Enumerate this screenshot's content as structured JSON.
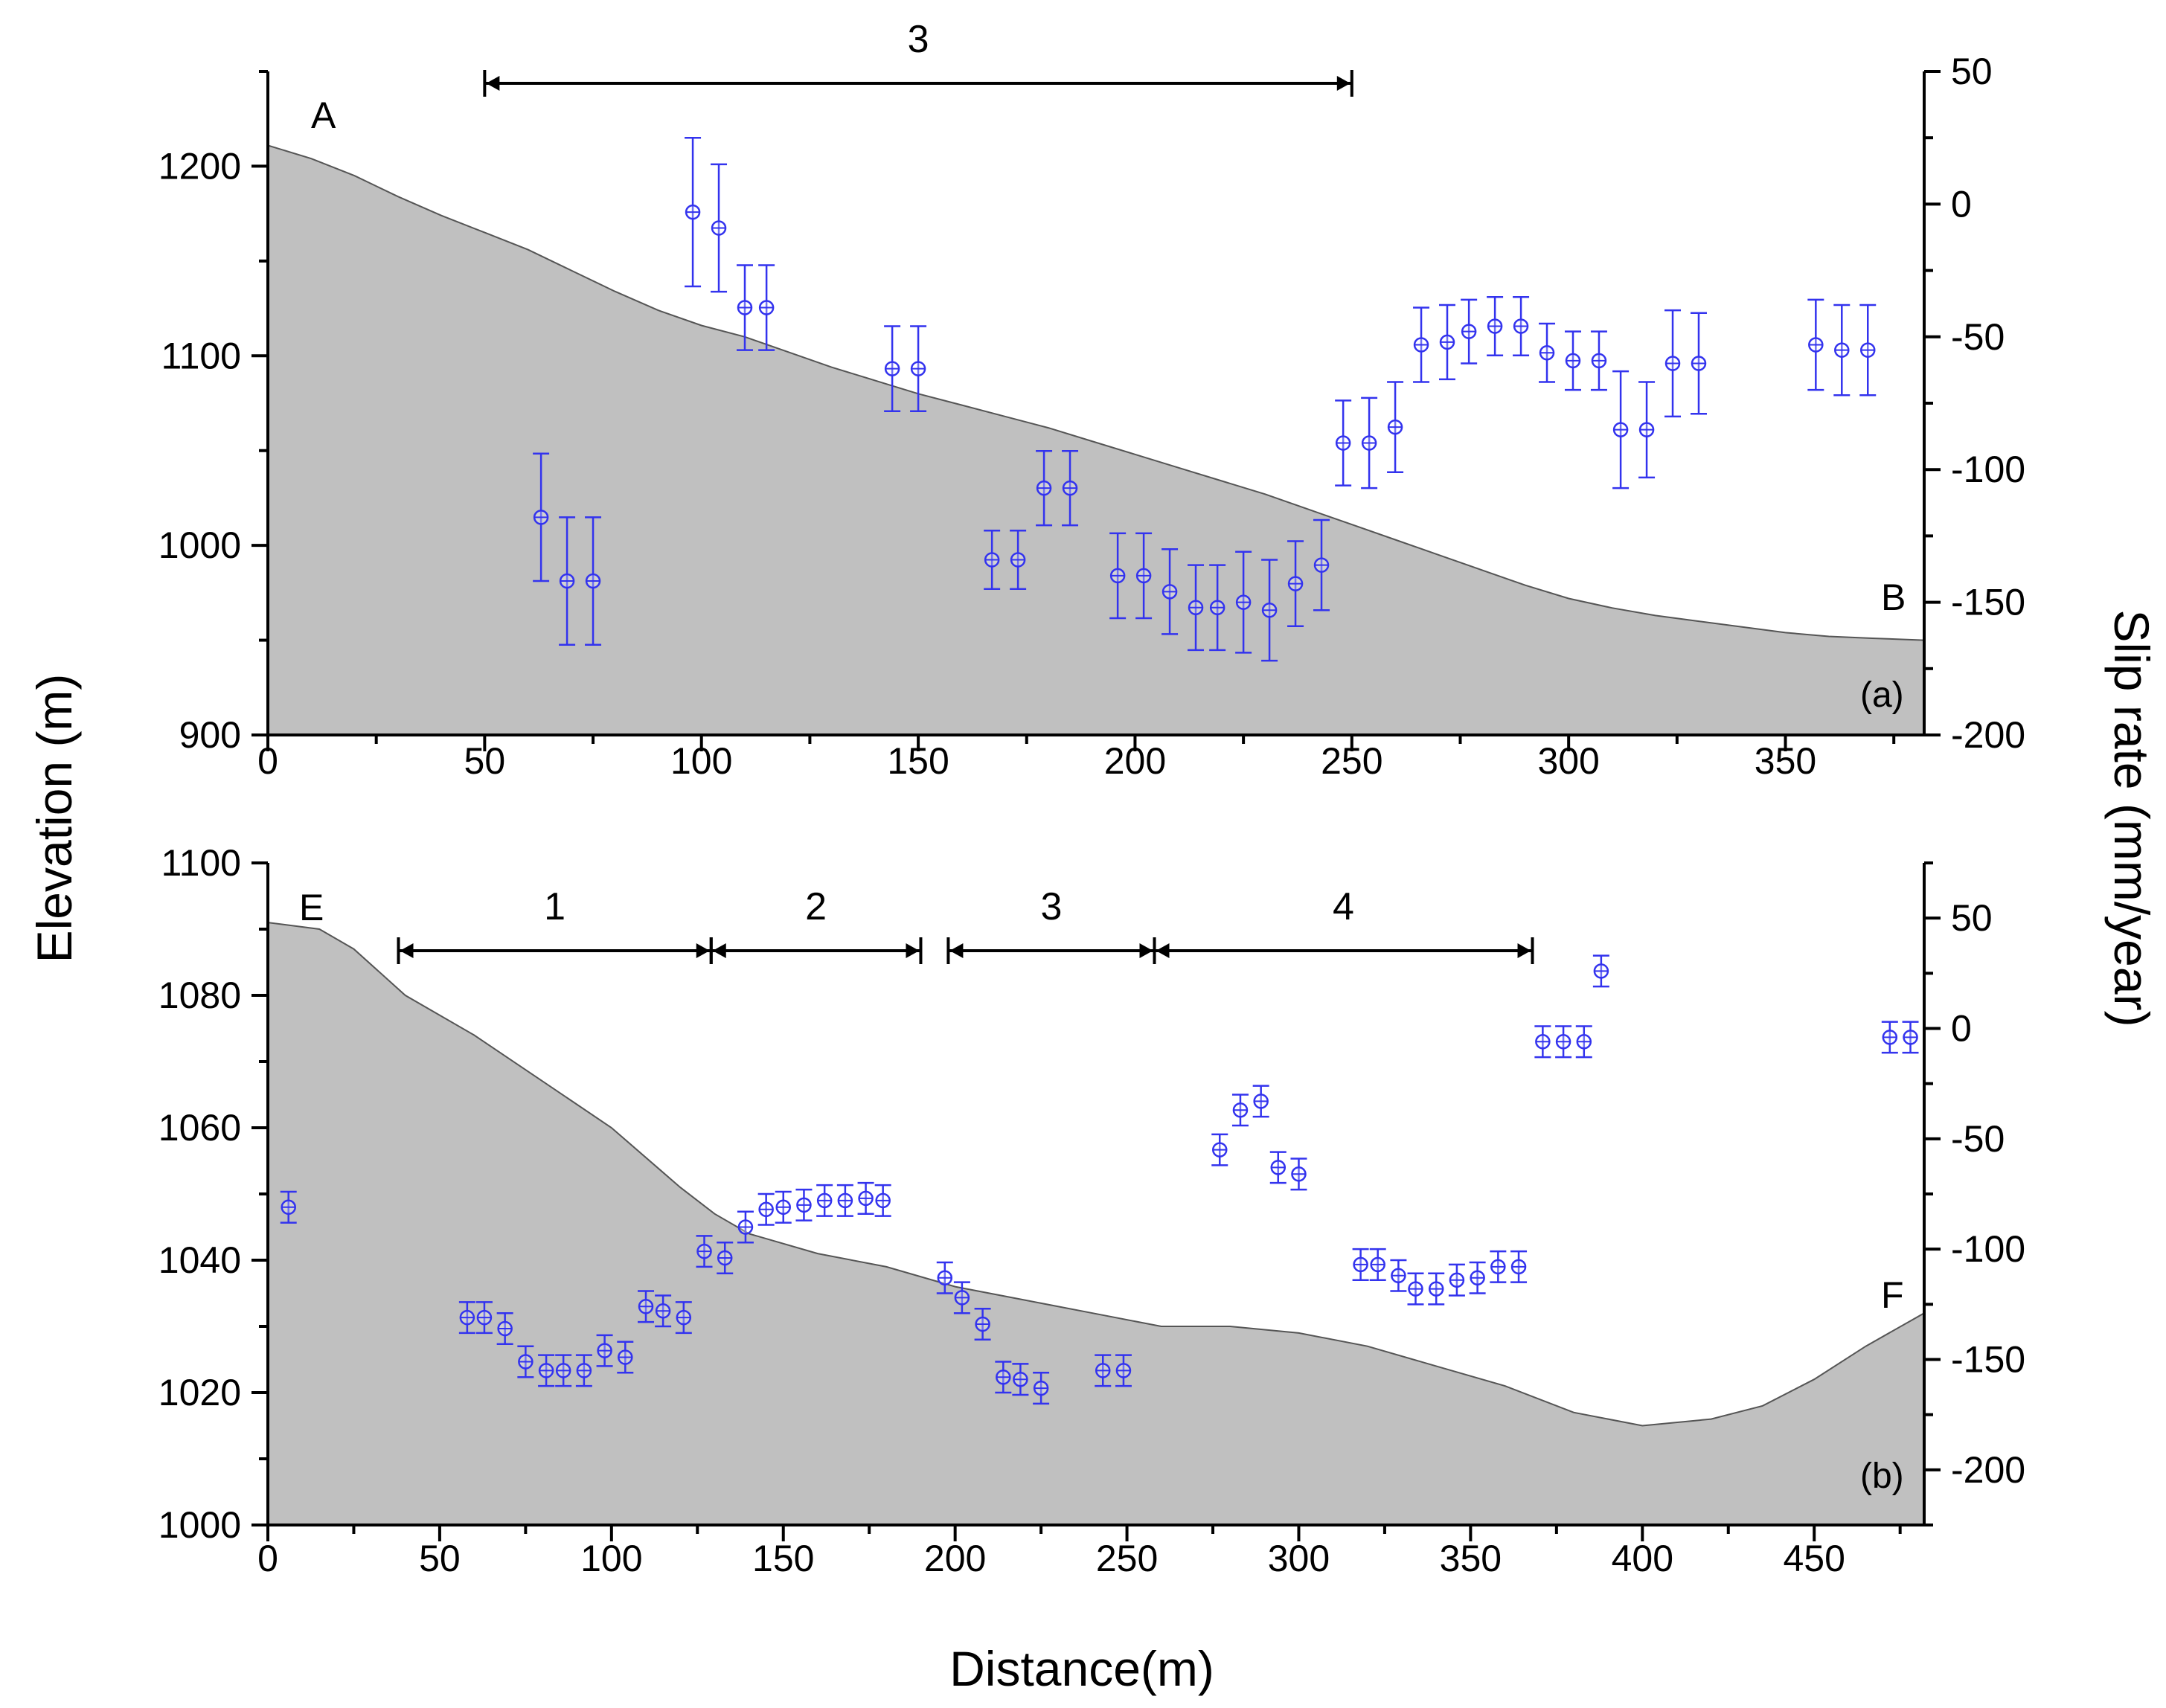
{
  "colors": {
    "terrain_fill": "#c0c0c0",
    "terrain_line": "#555555",
    "points": "#3333ee",
    "axes": "#000000"
  },
  "x_axis_title": "Distance(m)",
  "y_left_title": "Elevation (m)",
  "y_right_title": "Slip rate (mm/year)",
  "chart_data": [
    {
      "id": "a",
      "type": "scatter",
      "panel_label": "(a)",
      "start_label": "A",
      "end_label": "B",
      "xlim": [
        0,
        382
      ],
      "x_ticks": [
        0,
        50,
        100,
        150,
        200,
        250,
        300,
        350
      ],
      "ylim_left": [
        900,
        1250
      ],
      "y_left_ticks": [
        900,
        1000,
        1100,
        1200
      ],
      "ylim_right": [
        -200,
        50
      ],
      "y_right_ticks": [
        -200,
        -150,
        -100,
        -50,
        0,
        50
      ],
      "elevation_profile": {
        "x": [
          0,
          10,
          20,
          30,
          40,
          50,
          60,
          70,
          80,
          90,
          100,
          110,
          120,
          130,
          140,
          150,
          160,
          170,
          180,
          190,
          200,
          210,
          220,
          230,
          240,
          250,
          260,
          270,
          280,
          290,
          300,
          310,
          320,
          330,
          340,
          350,
          360,
          370,
          382
        ],
        "y": [
          1211,
          1204,
          1195,
          1184,
          1174,
          1165,
          1156,
          1145,
          1134,
          1124,
          1116,
          1110,
          1102,
          1094,
          1087,
          1080,
          1074,
          1068,
          1062,
          1055,
          1048,
          1041,
          1034,
          1027,
          1019,
          1011,
          1003,
          995,
          987,
          979,
          972,
          967,
          963,
          960,
          957,
          954,
          952,
          951,
          950
        ]
      },
      "zones": [
        {
          "label": "3",
          "start": 50,
          "end": 250
        }
      ],
      "slip_rate": {
        "x": [
          63,
          69,
          75,
          98,
          104,
          110,
          115,
          144,
          150,
          167,
          173,
          179,
          185,
          196,
          202,
          208,
          214,
          219,
          225,
          231,
          237,
          243,
          248,
          254,
          260,
          266,
          272,
          277,
          283,
          289,
          295,
          301,
          307,
          312,
          318,
          324,
          330,
          357,
          363,
          369
        ],
        "y": [
          -118,
          -142,
          -142,
          -3,
          -9,
          -39,
          -39,
          -62,
          -62,
          -134,
          -134,
          -107,
          -107,
          -140,
          -140,
          -146,
          -152,
          -152,
          -150,
          -153,
          -143,
          -136,
          -90,
          -90,
          -84,
          -53,
          -52,
          -48,
          -46,
          -46,
          -56,
          -59,
          -59,
          -85,
          -85,
          -60,
          -60,
          -53,
          -55,
          -55
        ],
        "err": [
          24,
          24,
          24,
          28,
          24,
          16,
          16,
          16,
          16,
          11,
          11,
          14,
          14,
          16,
          16,
          16,
          16,
          16,
          19,
          19,
          16,
          17,
          16,
          17,
          17,
          14,
          14,
          12,
          11,
          11,
          11,
          11,
          11,
          22,
          18,
          20,
          19,
          17,
          17,
          17
        ]
      }
    },
    {
      "id": "b",
      "type": "scatter",
      "panel_label": "(b)",
      "start_label": "E",
      "end_label": "F",
      "xlim": [
        0,
        482
      ],
      "x_ticks": [
        0,
        50,
        100,
        150,
        200,
        250,
        300,
        350,
        400,
        450
      ],
      "ylim_left": [
        1000,
        1100
      ],
      "y_left_ticks": [
        1000,
        1020,
        1040,
        1060,
        1080,
        1100
      ],
      "ylim_right": [
        -225,
        75
      ],
      "y_right_ticks": [
        -200,
        -150,
        -100,
        -50,
        0,
        50
      ],
      "elevation_profile": {
        "x": [
          0,
          15,
          25,
          40,
          60,
          80,
          100,
          120,
          130,
          140,
          160,
          180,
          200,
          220,
          240,
          260,
          280,
          300,
          320,
          340,
          360,
          380,
          400,
          420,
          435,
          450,
          465,
          482
        ],
        "y": [
          1091,
          1090,
          1087,
          1080,
          1074,
          1067,
          1060,
          1051,
          1047,
          1044,
          1041,
          1039,
          1036,
          1034,
          1032,
          1030,
          1030,
          1029,
          1027,
          1024,
          1021,
          1017,
          1015,
          1016,
          1018,
          1022,
          1027,
          1032
        ]
      },
      "zones": [
        {
          "label": "1",
          "start": 38,
          "end": 129
        },
        {
          "label": "2",
          "start": 129,
          "end": 190
        },
        {
          "label": "3",
          "start": 198,
          "end": 258
        },
        {
          "label": "4",
          "start": 258,
          "end": 368
        }
      ],
      "slip_rate": {
        "x": [
          6,
          58,
          63,
          69,
          75,
          81,
          86,
          92,
          98,
          104,
          110,
          115,
          121,
          127,
          133,
          139,
          145,
          150,
          156,
          162,
          168,
          174,
          179,
          197,
          202,
          208,
          214,
          219,
          225,
          243,
          249,
          277,
          283,
          289,
          294,
          300,
          318,
          323,
          329,
          334,
          340,
          346,
          352,
          358,
          364,
          371,
          377,
          383,
          388,
          472,
          478
        ],
        "y": [
          -81,
          -131,
          -131,
          -136,
          -151,
          -155,
          -155,
          -155,
          -146,
          -149,
          -126,
          -128,
          -131,
          -101,
          -104,
          -90,
          -82,
          -81,
          -80,
          -78,
          -78,
          -77,
          -78,
          -113,
          -122,
          -134,
          -158,
          -159,
          -163,
          -155,
          -155,
          -55,
          -37,
          -33,
          -63,
          -66,
          -107,
          -107,
          -112,
          -118,
          -118,
          -114,
          -113,
          -108,
          -108,
          -6,
          -6,
          -6,
          26,
          -4,
          -4
        ]
      }
    }
  ]
}
